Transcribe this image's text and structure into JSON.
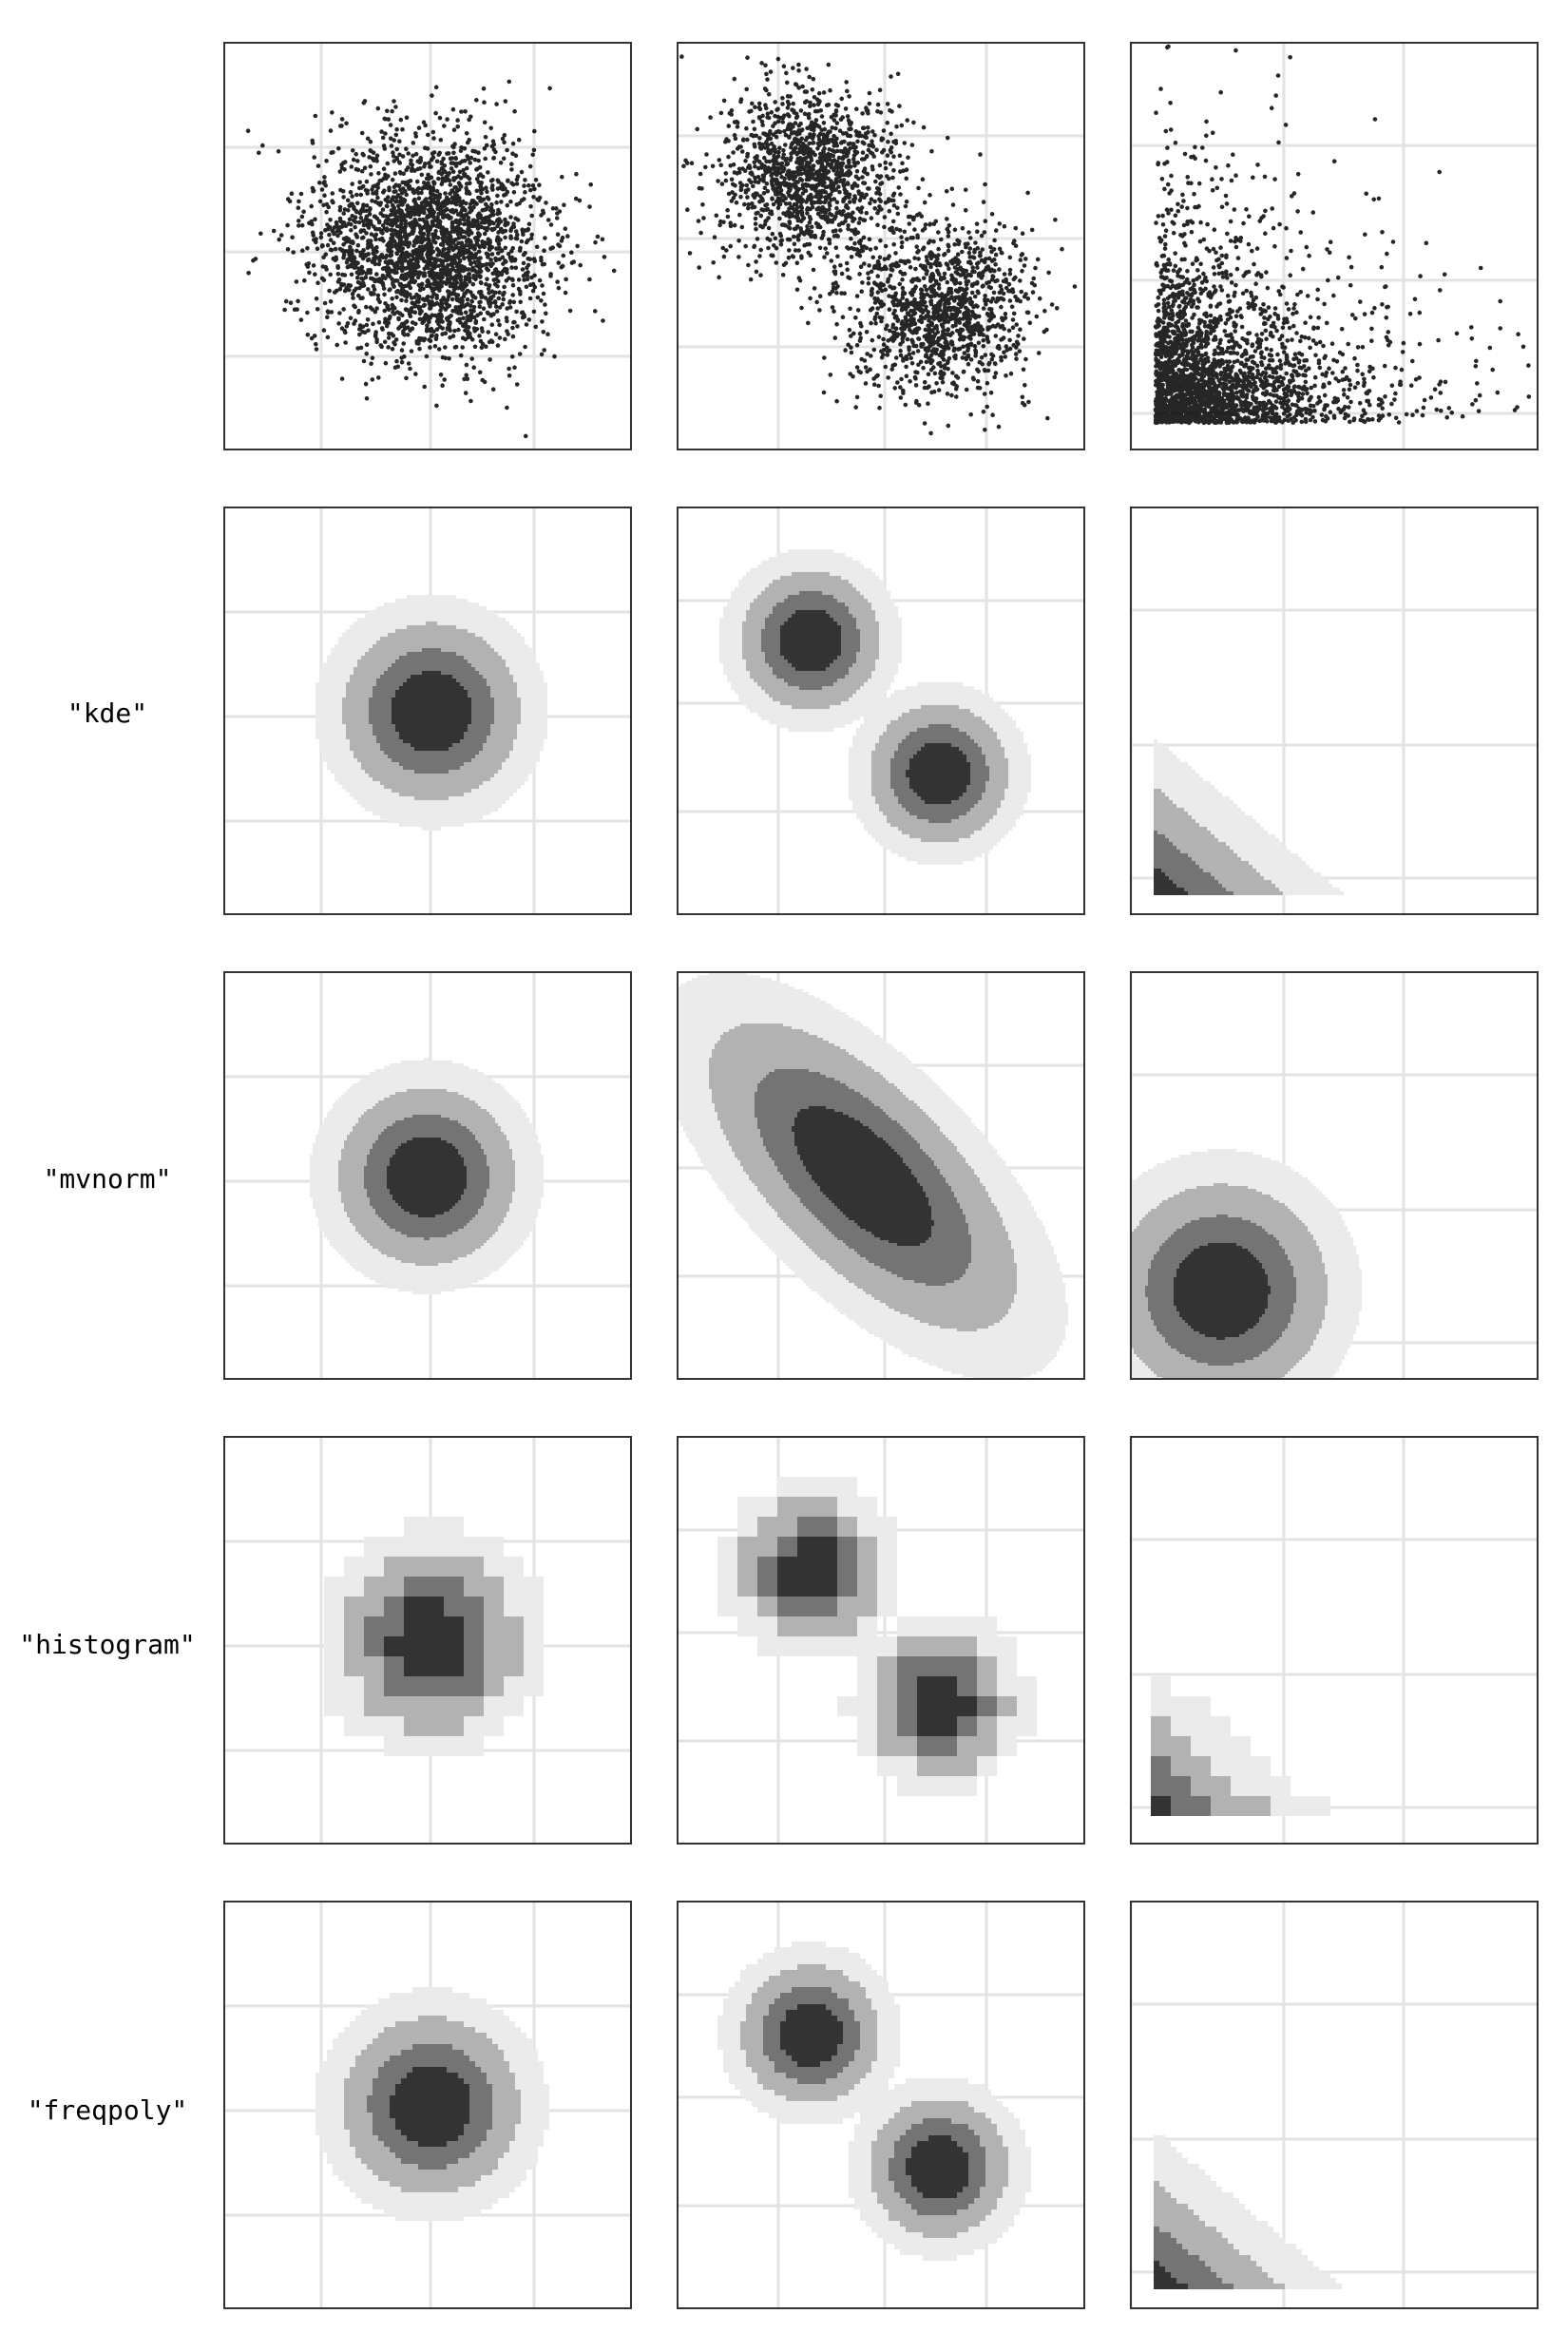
{
  "figure": {
    "row_labels": [
      "",
      "\"kde\"",
      "\"mvnorm\"",
      "\"histogram\"",
      "\"freqpoly\""
    ],
    "column_count": 3
  },
  "colors": {
    "points": "#000000",
    "level_1": "#ebebeb",
    "level_2": "#b2b2b2",
    "level_3": "#747474",
    "level_4": "#333333",
    "grid": "#e3e3e3",
    "frame": "#333333"
  },
  "chart_data": [
    {
      "row": "raw",
      "col": 1,
      "type": "scatter",
      "distribution": "single round normal cluster",
      "n_points_approx": 10000,
      "grid": true
    },
    {
      "row": "raw",
      "col": 2,
      "type": "scatter",
      "distribution": "two clusters along a diagonal",
      "n_points_approx": 10000,
      "grid": true
    },
    {
      "row": "raw",
      "col": 3,
      "type": "scatter",
      "distribution": "skewed, bounded at lower-left",
      "n_points_approx": 10000,
      "grid": true
    },
    {
      "row": "kde",
      "col": 1,
      "type": "heatmap",
      "style": "filled contour",
      "levels": 4,
      "grid": true
    },
    {
      "row": "kde",
      "col": 2,
      "type": "heatmap",
      "style": "filled contour",
      "levels": 4,
      "grid": true
    },
    {
      "row": "kde",
      "col": 3,
      "type": "heatmap",
      "style": "filled contour",
      "levels": 4,
      "grid": true
    },
    {
      "row": "mvnorm",
      "col": 1,
      "type": "heatmap",
      "style": "filled contour",
      "levels": 4,
      "grid": true
    },
    {
      "row": "mvnorm",
      "col": 2,
      "type": "heatmap",
      "style": "filled contour",
      "levels": 4,
      "grid": true
    },
    {
      "row": "mvnorm",
      "col": 3,
      "type": "heatmap",
      "style": "filled contour",
      "levels": 4,
      "grid": true
    },
    {
      "row": "histogram",
      "col": 1,
      "type": "heatmap",
      "style": "binned",
      "levels": 4,
      "grid": true
    },
    {
      "row": "histogram",
      "col": 2,
      "type": "heatmap",
      "style": "binned",
      "levels": 4,
      "grid": true
    },
    {
      "row": "histogram",
      "col": 3,
      "type": "heatmap",
      "style": "binned",
      "levels": 4,
      "grid": true
    },
    {
      "row": "freqpoly",
      "col": 1,
      "type": "heatmap",
      "style": "filled contour",
      "levels": 4,
      "grid": true
    },
    {
      "row": "freqpoly",
      "col": 2,
      "type": "heatmap",
      "style": "filled contour",
      "levels": 4,
      "grid": true
    },
    {
      "row": "freqpoly",
      "col": 3,
      "type": "heatmap",
      "style": "filled contour",
      "levels": 4,
      "grid": true
    }
  ]
}
